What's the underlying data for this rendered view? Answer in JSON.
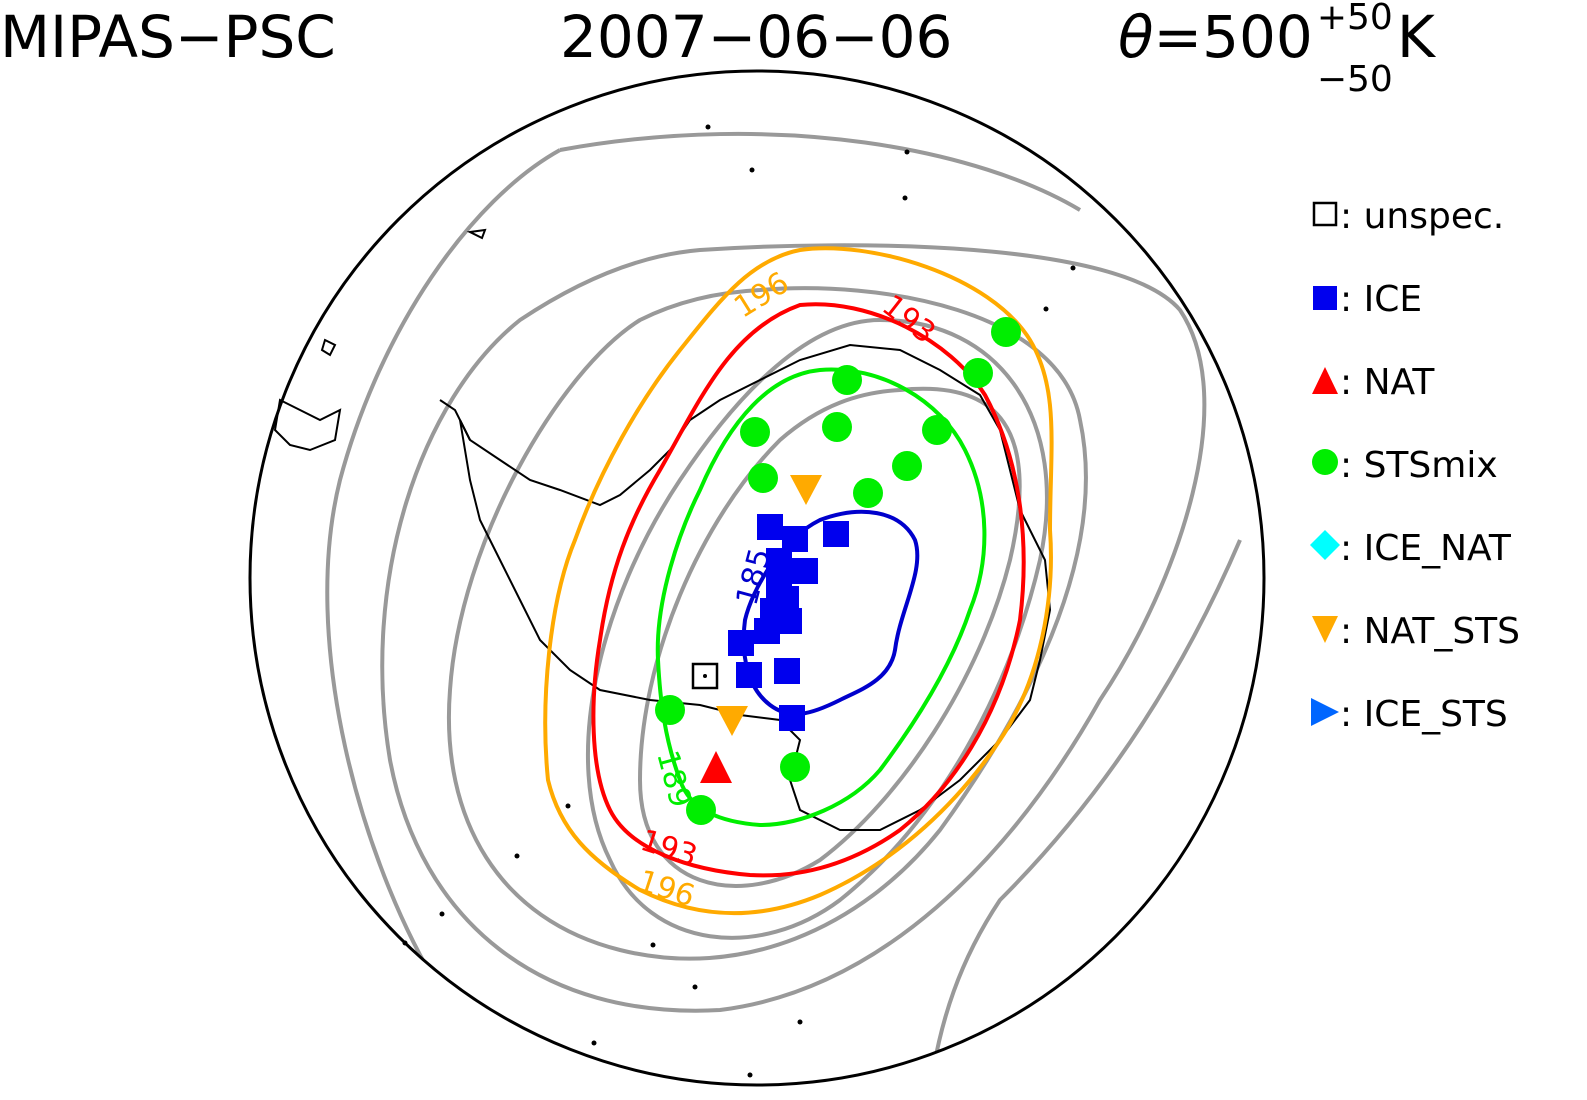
{
  "title": {
    "instrument": "MIPAS−PSC",
    "date": "2007−06−06",
    "theta_symbol": "θ",
    "theta_eq": "=500",
    "theta_plus": "+50",
    "theta_minus": "−50",
    "theta_unit": "K"
  },
  "contour_labels": {
    "c196_top": "196",
    "c193_top": "193",
    "c185": "185",
    "c189": "189",
    "c193_bottom": "193",
    "c196_bottom": "196"
  },
  "contour_colors": {
    "c196": "#ffaa00",
    "c193": "#ff0000",
    "c189": "#00ee00",
    "c185": "#0000cc",
    "background": "#999999"
  },
  "legend": [
    {
      "symbol": "square-open",
      "color": "#000000",
      "label": "□: unspec."
    },
    {
      "symbol": "square",
      "color": "#0000ee",
      "label": "■: ICE"
    },
    {
      "symbol": "triangle-up",
      "color": "#ff0000",
      "label": "▲: NAT"
    },
    {
      "symbol": "circle",
      "color": "#00ee00",
      "label": "●: STSmix"
    },
    {
      "symbol": "diamond",
      "color": "#00ffff",
      "label": "◆: ICE_NAT"
    },
    {
      "symbol": "triangle-down",
      "color": "#ffaa00",
      "label": "▼: NAT_STS"
    },
    {
      "symbol": "triangle-right",
      "color": "#0066ff",
      "label": "▶: ICE_STS"
    }
  ],
  "legend_text": [
    ": unspec.",
    ": ICE",
    ": NAT",
    ": STSmix",
    ": ICE_NAT",
    ": NAT_STS",
    ": ICE_STS"
  ]
}
